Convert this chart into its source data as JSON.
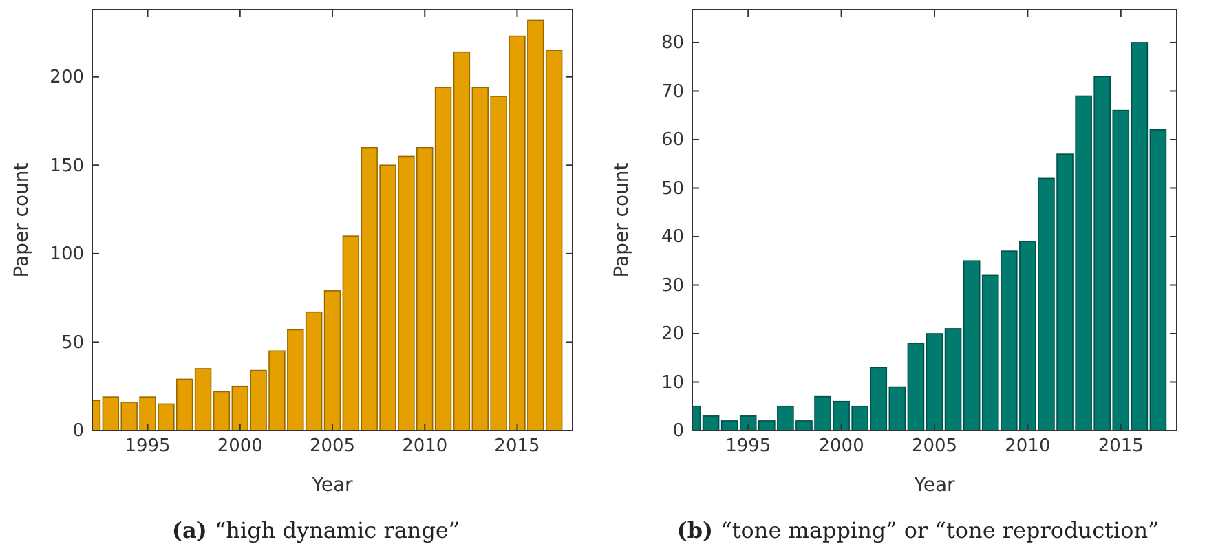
{
  "chart_data": [
    {
      "type": "bar",
      "xlabel": "Year",
      "ylabel": "Paper count",
      "annotations": [
        "(a) “high dynamic range”"
      ],
      "x": [
        1992,
        1993,
        1994,
        1995,
        1996,
        1997,
        1998,
        1999,
        2000,
        2001,
        2002,
        2003,
        2004,
        2005,
        2006,
        2007,
        2008,
        2009,
        2010,
        2011,
        2012,
        2013,
        2014,
        2015,
        2016,
        2017
      ],
      "values": [
        17,
        19,
        16,
        19,
        15,
        29,
        35,
        22,
        25,
        34,
        45,
        57,
        67,
        79,
        110,
        160,
        150,
        155,
        160,
        194,
        214,
        194,
        189,
        223,
        232,
        215
      ],
      "color": "#e69f00",
      "xlim": [
        1992,
        2018
      ],
      "xticks": [
        1995,
        2000,
        2005,
        2010,
        2015
      ],
      "ylim": [
        0,
        238
      ],
      "yticks": [
        0,
        50,
        100,
        150,
        200
      ],
      "grid": false
    },
    {
      "type": "bar",
      "xlabel": "Year",
      "ylabel": "Paper count",
      "annotations": [
        "(b) “tone mapping” or “tone reproduction”"
      ],
      "x": [
        1992,
        1993,
        1994,
        1995,
        1996,
        1997,
        1998,
        1999,
        2000,
        2001,
        2002,
        2003,
        2004,
        2005,
        2006,
        2007,
        2008,
        2009,
        2010,
        2011,
        2012,
        2013,
        2014,
        2015,
        2016,
        2017
      ],
      "values": [
        5,
        3,
        2,
        3,
        2,
        5,
        2,
        7,
        6,
        5,
        13,
        9,
        18,
        20,
        21,
        35,
        32,
        37,
        39,
        52,
        57,
        69,
        73,
        66,
        80,
        62
      ],
      "color": "#007b6e",
      "xlim": [
        1992,
        2018
      ],
      "xticks": [
        1995,
        2000,
        2005,
        2010,
        2015
      ],
      "ylim": [
        0,
        86.8
      ],
      "yticks": [
        0,
        10,
        20,
        30,
        40,
        50,
        60,
        70,
        80
      ],
      "grid": false
    }
  ]
}
